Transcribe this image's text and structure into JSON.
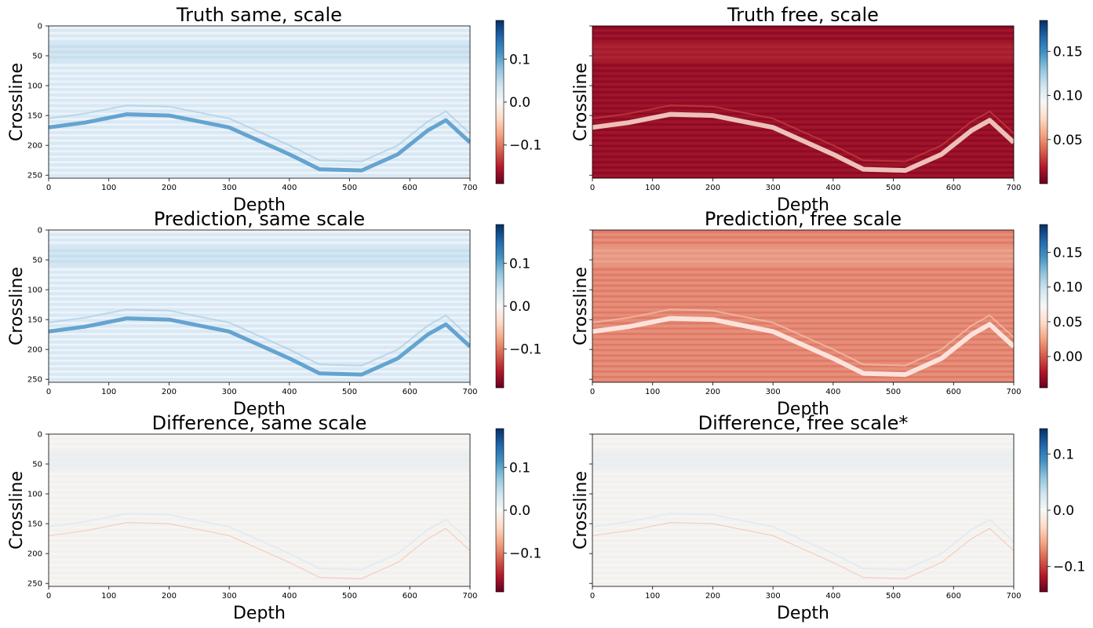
{
  "colormap": {
    "name": "RdBu",
    "stops": [
      "#67001f",
      "#b2182b",
      "#d6604d",
      "#f4a582",
      "#fddbc7",
      "#f7f7f7",
      "#d1e5f0",
      "#92c5de",
      "#4393c3",
      "#2166ac",
      "#053061"
    ]
  },
  "chart_data": [
    {
      "type": "heatmap",
      "title": "Truth same, scale",
      "xlabel": "Depth",
      "ylabel": "Crossline",
      "xlim": [
        0,
        700
      ],
      "ylim": [
        255,
        0
      ],
      "x_ticks": [
        "0",
        "100",
        "200",
        "300",
        "400",
        "500",
        "600",
        "700"
      ],
      "y_ticks": [
        "0",
        "50",
        "100",
        "150",
        "200",
        "250"
      ],
      "show_y_tick_labels": true,
      "colorbar": {
        "range": [
          -0.19,
          0.19
        ],
        "ticks": [
          -0.1,
          0.0,
          0.1
        ],
        "tick_labels": [
          "−0.1",
          "0.0",
          "0.1"
        ]
      },
      "appearance": "light-blue"
    },
    {
      "type": "heatmap",
      "title": "Truth free, scale",
      "xlabel": "Depth",
      "ylabel": "Crossline",
      "xlim": [
        0,
        700
      ],
      "ylim": [
        255,
        0
      ],
      "x_ticks": [
        "0",
        "100",
        "200",
        "300",
        "400",
        "500",
        "600",
        "700"
      ],
      "y_ticks": [
        "0",
        "50",
        "100",
        "150",
        "200",
        "250"
      ],
      "show_y_tick_labels": false,
      "colorbar": {
        "range": [
          0.0,
          0.185
        ],
        "ticks": [
          0.05,
          0.1,
          0.15
        ],
        "tick_labels": [
          "0.05",
          "0.10",
          "0.15"
        ]
      },
      "appearance": "dark-red"
    },
    {
      "type": "heatmap",
      "title": "Prediction, same scale",
      "xlabel": "Depth",
      "ylabel": "Crossline",
      "xlim": [
        0,
        700
      ],
      "ylim": [
        255,
        0
      ],
      "x_ticks": [
        "0",
        "100",
        "200",
        "300",
        "400",
        "500",
        "600",
        "700"
      ],
      "y_ticks": [
        "0",
        "50",
        "100",
        "150",
        "200",
        "250"
      ],
      "show_y_tick_labels": true,
      "colorbar": {
        "range": [
          -0.19,
          0.19
        ],
        "ticks": [
          -0.1,
          0.0,
          0.1
        ],
        "tick_labels": [
          "−0.1",
          "0.0",
          "0.1"
        ]
      },
      "appearance": "light-blue"
    },
    {
      "type": "heatmap",
      "title": "Prediction, free scale",
      "xlabel": "Depth",
      "ylabel": "Crossline",
      "xlim": [
        0,
        700
      ],
      "ylim": [
        255,
        0
      ],
      "x_ticks": [
        "0",
        "100",
        "200",
        "300",
        "400",
        "500",
        "600",
        "700"
      ],
      "y_ticks": [
        "0",
        "50",
        "100",
        "150",
        "200",
        "250"
      ],
      "show_y_tick_labels": false,
      "colorbar": {
        "range": [
          -0.045,
          0.19
        ],
        "ticks": [
          0.0,
          0.05,
          0.1,
          0.15
        ],
        "tick_labels": [
          "0.00",
          "0.05",
          "0.10",
          "0.15"
        ]
      },
      "appearance": "medium-red"
    },
    {
      "type": "heatmap",
      "title": "Difference, same scale",
      "xlabel": "Depth",
      "ylabel": "Crossline",
      "xlim": [
        0,
        700
      ],
      "ylim": [
        255,
        0
      ],
      "x_ticks": [
        "0",
        "100",
        "200",
        "300",
        "400",
        "500",
        "600",
        "700"
      ],
      "y_ticks": [
        "0",
        "50",
        "100",
        "150",
        "200",
        "250"
      ],
      "show_y_tick_labels": true,
      "colorbar": {
        "range": [
          -0.19,
          0.19
        ],
        "ticks": [
          -0.1,
          0.0,
          0.1
        ],
        "tick_labels": [
          "−0.1",
          "0.0",
          "0.1"
        ]
      },
      "appearance": "near-white"
    },
    {
      "type": "heatmap",
      "title": "Difference, free scale*",
      "xlabel": "Depth",
      "ylabel": "Crossline",
      "xlim": [
        0,
        700
      ],
      "ylim": [
        255,
        0
      ],
      "x_ticks": [
        "0",
        "100",
        "200",
        "300",
        "400",
        "500",
        "600",
        "700"
      ],
      "y_ticks": [
        "0",
        "50",
        "100",
        "150",
        "200",
        "250"
      ],
      "show_y_tick_labels": false,
      "colorbar": {
        "range": [
          -0.145,
          0.145
        ],
        "ticks": [
          -0.1,
          0.0,
          0.1
        ],
        "tick_labels": [
          "−0.1",
          "0.0",
          "0.1"
        ]
      },
      "appearance": "near-white"
    }
  ]
}
